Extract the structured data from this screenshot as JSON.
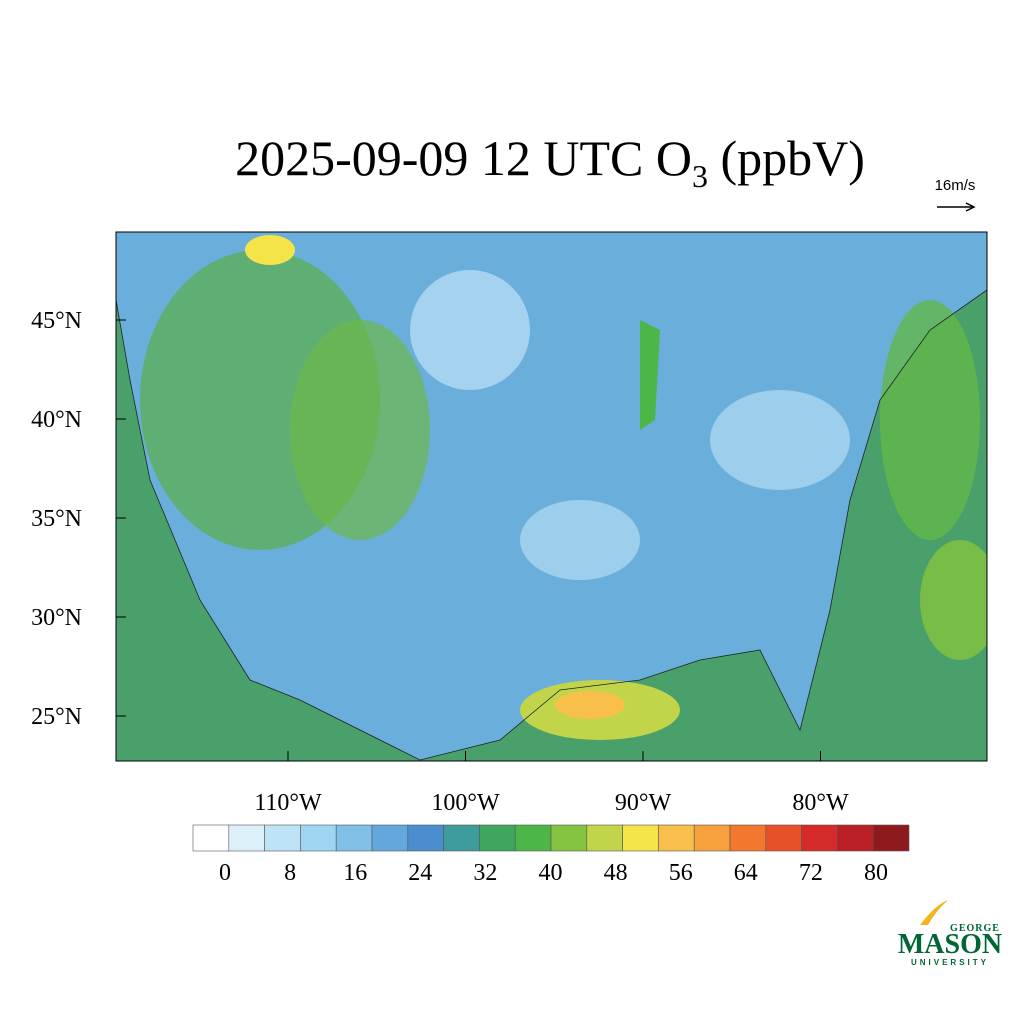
{
  "header": {
    "title": [
      "2025-09-09 12 UTC O",
      "3",
      " (ppbV)"
    ],
    "reference_vector": "16m/s"
  },
  "map": {
    "lat_ticks": [
      {
        "value": 45,
        "label": "45°N"
      },
      {
        "value": 40,
        "label": "40°N"
      },
      {
        "value": 35,
        "label": "35°N"
      },
      {
        "value": 30,
        "label": "30°N"
      },
      {
        "value": 25,
        "label": "25°N"
      }
    ],
    "lon_ticks": [
      {
        "value": -110,
        "label": "110°W"
      },
      {
        "value": -100,
        "label": "100°W"
      },
      {
        "value": -90,
        "label": "90°W"
      },
      {
        "value": -80,
        "label": "80°W"
      }
    ]
  },
  "colorbar": {
    "colors": [
      "#ffffff",
      "#dcf0fa",
      "#bfe3f6",
      "#9fd4f2",
      "#80bfe6",
      "#62a8dc",
      "#4a8ecf",
      "#3f9c9c",
      "#3fa65f",
      "#4cb748",
      "#84c441",
      "#c2d54a",
      "#f5e34a",
      "#f8c04a",
      "#f6a03e",
      "#f2782e",
      "#e8502a",
      "#d72a2a",
      "#b91f25",
      "#8f1a1e"
    ],
    "ticks": [
      0,
      8,
      16,
      24,
      32,
      40,
      48,
      56,
      64,
      72,
      80
    ]
  },
  "logo": {
    "top": "GEORGE",
    "main": "MASON",
    "bottom": "UNIVERSITY"
  }
}
